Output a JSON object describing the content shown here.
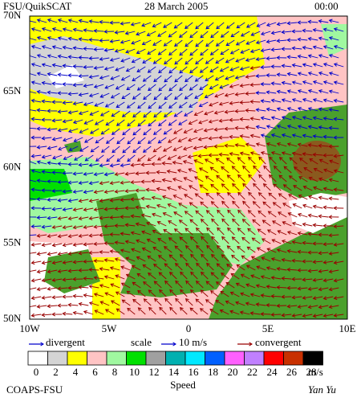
{
  "header": {
    "product": "FSU/QuikSCAT",
    "date": "28 March 2005",
    "time": "00:00"
  },
  "map": {
    "lat_labels": [
      "70N",
      "65N",
      "60N",
      "55N",
      "50N"
    ],
    "lon_labels": [
      "10W",
      "5W",
      "0",
      "5E",
      "10E"
    ]
  },
  "legend": {
    "divergent": "divergent",
    "scale": "scale",
    "scale_value": "10 m/s",
    "convergent": "convergent",
    "divergent_color": "#0000cc",
    "convergent_color": "#990000"
  },
  "colorbar": {
    "labels": [
      "0",
      "2",
      "4",
      "6",
      "8",
      "10",
      "12",
      "14",
      "16",
      "18",
      "20",
      "22",
      "24",
      "26",
      "28"
    ],
    "unit": "m/s",
    "title": "Speed",
    "colors": [
      "#ffffff",
      "#d4d4d4",
      "#ffff00",
      "#ffc4c4",
      "#a0f8a0",
      "#00e000",
      "#a0a0a0",
      "#00b0b0",
      "#00e8ff",
      "#0060ff",
      "#ff60ff",
      "#c080ff",
      "#ff0000",
      "#c83000",
      "#000000"
    ]
  },
  "footer": {
    "left": "COAPS-FSU",
    "right": "Yan Yu"
  }
}
